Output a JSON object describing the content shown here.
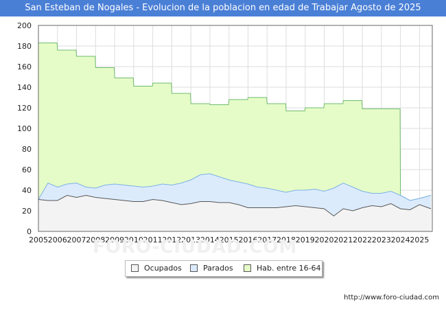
{
  "header": {
    "title": "San Esteban de Nogales - Evolucion de la poblacion en edad de Trabajar Agosto de 2025"
  },
  "footer": {
    "url": "http://www.foro-ciudad.com",
    "watermark": "FORO-CIUDAD.COM"
  },
  "chart_data": {
    "type": "area",
    "title": "San Esteban de Nogales - Evolucion de la poblacion en edad de Trabajar Agosto de 2025",
    "xlabel": "",
    "ylabel": "",
    "xlim": [
      2005,
      2025.67
    ],
    "ylim": [
      0,
      200
    ],
    "yticks": [
      0,
      20,
      40,
      60,
      80,
      100,
      120,
      140,
      160,
      180,
      200
    ],
    "xticks": [
      "2005",
      "2006",
      "2007",
      "2008",
      "2009",
      "2010",
      "2011",
      "2012",
      "2013",
      "2014",
      "2015",
      "2016",
      "2017",
      "2018",
      "2019",
      "2020",
      "2021",
      "2022",
      "2023",
      "2024",
      "2025"
    ],
    "grid": true,
    "legend_position": "bottom-center",
    "colors": {
      "hab": {
        "fill": "#e6fcc8",
        "line": "#6dbb6d"
      },
      "parados": {
        "fill": "#dcebfc",
        "line": "#7ab0e6"
      },
      "ocupados": {
        "fill": "#f3f3f3",
        "line": "#555555"
      }
    },
    "series": [
      {
        "name": "Hab. entre 16-64",
        "annual": [
          {
            "year": 2005,
            "value": 183
          },
          {
            "year": 2006,
            "value": 176
          },
          {
            "year": 2007,
            "value": 170
          },
          {
            "year": 2008,
            "value": 159
          },
          {
            "year": 2009,
            "value": 149
          },
          {
            "year": 2010,
            "value": 141
          },
          {
            "year": 2011,
            "value": 144
          },
          {
            "year": 2012,
            "value": 134
          },
          {
            "year": 2013,
            "value": 124
          },
          {
            "year": 2014,
            "value": 123
          },
          {
            "year": 2015,
            "value": 128
          },
          {
            "year": 2016,
            "value": 130
          },
          {
            "year": 2017,
            "value": 124
          },
          {
            "year": 2018,
            "value": 117
          },
          {
            "year": 2019,
            "value": 120
          },
          {
            "year": 2020,
            "value": 124
          },
          {
            "year": 2021,
            "value": 127
          },
          {
            "year": 2022,
            "value": 119
          },
          {
            "year": 2023,
            "value": 119
          }
        ]
      },
      {
        "name": "Parados",
        "x": [
          2005,
          2005.5,
          2006,
          2006.5,
          2007,
          2007.5,
          2008,
          2008.5,
          2009,
          2009.5,
          2010,
          2010.5,
          2011,
          2011.5,
          2012,
          2012.5,
          2013,
          2013.5,
          2014,
          2014.5,
          2015,
          2015.5,
          2016,
          2016.5,
          2017,
          2017.5,
          2018,
          2018.5,
          2019,
          2019.5,
          2020,
          2020.5,
          2021,
          2021.5,
          2022,
          2022.5,
          2023,
          2023.5,
          2024,
          2024.5,
          2025,
          2025.6
        ],
        "values": [
          31,
          47,
          43,
          46,
          47,
          43,
          42,
          45,
          46,
          45,
          44,
          43,
          44,
          46,
          45,
          47,
          50,
          55,
          56,
          53,
          50,
          48,
          46,
          43,
          42,
          40,
          38,
          40,
          40,
          41,
          39,
          42,
          47,
          43,
          39,
          37,
          37,
          39,
          35,
          30,
          32,
          35
        ]
      },
      {
        "name": "Ocupados",
        "x": [
          2005,
          2005.5,
          2006,
          2006.5,
          2007,
          2007.5,
          2008,
          2008.5,
          2009,
          2009.5,
          2010,
          2010.5,
          2011,
          2011.5,
          2012,
          2012.5,
          2013,
          2013.5,
          2014,
          2014.5,
          2015,
          2015.5,
          2016,
          2016.5,
          2017,
          2017.5,
          2018,
          2018.5,
          2019,
          2019.5,
          2020,
          2020.5,
          2021,
          2021.5,
          2022,
          2022.5,
          2023,
          2023.5,
          2024,
          2024.5,
          2025,
          2025.6
        ],
        "values": [
          31,
          30,
          30,
          35,
          33,
          35,
          33,
          32,
          31,
          30,
          29,
          29,
          31,
          30,
          28,
          26,
          27,
          29,
          29,
          28,
          28,
          26,
          23,
          23,
          23,
          23,
          24,
          25,
          24,
          23,
          22,
          15,
          22,
          20,
          23,
          25,
          24,
          27,
          22,
          21,
          26,
          22
        ]
      }
    ]
  },
  "legend": {
    "items": [
      {
        "label": "Ocupados",
        "color": "#f3f3f3"
      },
      {
        "label": "Parados",
        "color": "#dcebfc"
      },
      {
        "label": "Hab. entre 16-64",
        "color": "#e6fcc8"
      }
    ]
  }
}
